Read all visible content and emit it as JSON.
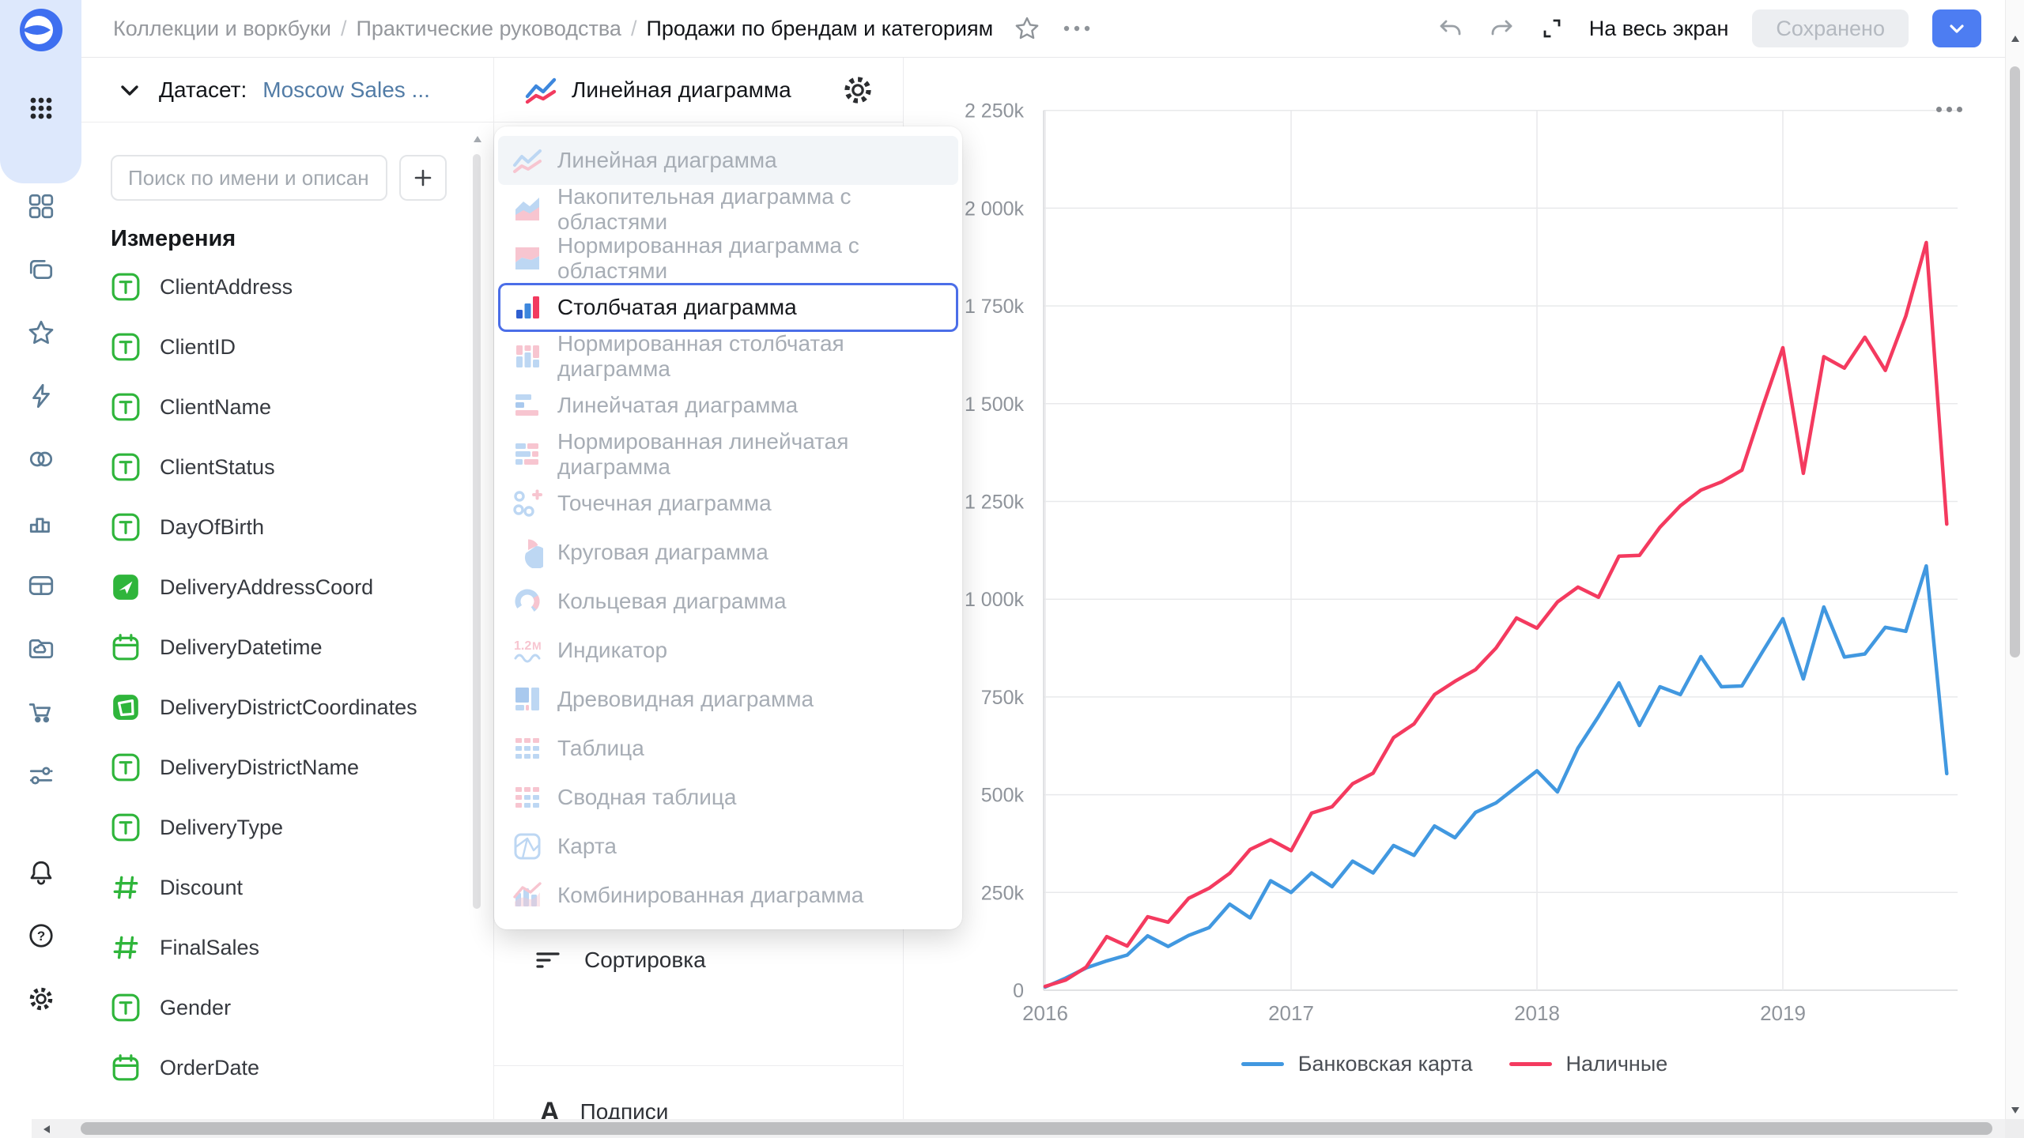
{
  "topbar": {
    "breadcrumbs": [
      "Коллекции и воркбуки",
      "Практические руководства",
      "Продажи по брендам и категориям"
    ],
    "fullscreen_label": "На весь экран",
    "save_button": "Сохранено",
    "icons": [
      "favorite-star-icon",
      "more-ellipsis-icon",
      "undo-icon",
      "redo-icon",
      "expand-fullscreen-icon",
      "save-dropdown-chevron-icon"
    ]
  },
  "sidebar": {
    "icons": [
      "datalens-logo",
      "apps-grid-icon",
      "dashboards-icon",
      "collections-icon",
      "favorites-star-icon",
      "quick-actions-bolt-icon",
      "datasets-venn-icon",
      "charts-bars-icon",
      "tables-icon",
      "storage-folder-icon",
      "marketplace-cart-icon",
      "services-sliders-icon",
      "notifications-bell-icon",
      "help-icon",
      "settings-gear-icon"
    ]
  },
  "dataset_panel": {
    "label": "Датасет:",
    "dataset_name": "Moscow Sales ...",
    "search_placeholder": "Поиск по имени и описанию",
    "add_button_label": "+",
    "section_title": "Измерения",
    "fields": [
      {
        "name": "ClientAddress",
        "type": "string"
      },
      {
        "name": "ClientID",
        "type": "string"
      },
      {
        "name": "ClientName",
        "type": "string"
      },
      {
        "name": "ClientStatus",
        "type": "string"
      },
      {
        "name": "DayOfBirth",
        "type": "string"
      },
      {
        "name": "DeliveryAddressCoord",
        "type": "geopoint"
      },
      {
        "name": "DeliveryDatetime",
        "type": "date"
      },
      {
        "name": "DeliveryDistrictCoordinates",
        "type": "geopolygon"
      },
      {
        "name": "DeliveryDistrictName",
        "type": "string"
      },
      {
        "name": "DeliveryType",
        "type": "string"
      },
      {
        "name": "Discount",
        "type": "number"
      },
      {
        "name": "FinalSales",
        "type": "number"
      },
      {
        "name": "Gender",
        "type": "string"
      },
      {
        "name": "OrderDate",
        "type": "date"
      }
    ]
  },
  "chart_selector": {
    "current": "Линейная диаграмма",
    "options": [
      {
        "label": "Линейная диаграмма",
        "icon": "line",
        "state": "hover"
      },
      {
        "label": "Накопительная диаграмма с областями",
        "icon": "area-stacked",
        "state": "default"
      },
      {
        "label": "Нормированная диаграмма с областями",
        "icon": "area-normalized",
        "state": "default"
      },
      {
        "label": "Столбчатая диаграмма",
        "icon": "column",
        "state": "selected"
      },
      {
        "label": "Нормированная столбчатая диаграмма",
        "icon": "column-normalized",
        "state": "default"
      },
      {
        "label": "Линейчатая диаграмма",
        "icon": "bar",
        "state": "default"
      },
      {
        "label": "Нормированная линейчатая диаграмма",
        "icon": "bar-normalized",
        "state": "default"
      },
      {
        "label": "Точечная диаграмма",
        "icon": "scatter",
        "state": "default"
      },
      {
        "label": "Круговая диаграмма",
        "icon": "pie",
        "state": "default"
      },
      {
        "label": "Кольцевая диаграмма",
        "icon": "donut",
        "state": "default"
      },
      {
        "label": "Индикатор",
        "icon": "indicator",
        "state": "default"
      },
      {
        "label": "Древовидная диаграмма",
        "icon": "treemap",
        "state": "default"
      },
      {
        "label": "Таблица",
        "icon": "table",
        "state": "default"
      },
      {
        "label": "Сводная таблица",
        "icon": "pivot",
        "state": "default"
      },
      {
        "label": "Карта",
        "icon": "map",
        "state": "default"
      },
      {
        "label": "Комбинированная диаграмма",
        "icon": "combined",
        "state": "default"
      }
    ]
  },
  "config_panel": {
    "sorting": "Сортировка",
    "labels": "Подписи"
  },
  "chart_data": {
    "type": "line",
    "title": "",
    "xlabel": "",
    "ylabel": "",
    "value_unit": "thousands (k)",
    "grid": true,
    "legend_position": "bottom",
    "x": [
      "2016-01",
      "2016-02",
      "2016-03",
      "2016-04",
      "2016-05",
      "2016-06",
      "2016-07",
      "2016-08",
      "2016-09",
      "2016-10",
      "2016-11",
      "2016-12",
      "2017-01",
      "2017-02",
      "2017-03",
      "2017-04",
      "2017-05",
      "2017-06",
      "2017-07",
      "2017-08",
      "2017-09",
      "2017-10",
      "2017-11",
      "2017-12",
      "2018-01",
      "2018-02",
      "2018-03",
      "2018-04",
      "2018-05",
      "2018-06",
      "2018-07",
      "2018-08",
      "2018-09",
      "2018-10",
      "2018-11",
      "2018-12",
      "2019-01",
      "2019-02",
      "2019-03",
      "2019-04",
      "2019-05",
      "2019-06",
      "2019-07",
      "2019-08",
      "2019-09"
    ],
    "series": [
      {
        "name": "Банковская карта",
        "color": "#4198e0",
        "values_k": [
          8,
          31,
          57,
          75,
          90,
          139,
          112,
          140,
          160,
          220,
          185,
          280,
          250,
          300,
          265,
          330,
          300,
          370,
          345,
          420,
          390,
          455,
          479,
          520,
          561,
          507,
          619,
          700,
          786,
          677,
          776,
          756,
          853,
          776,
          778,
          865,
          950,
          796,
          980,
          852,
          860,
          928,
          918,
          1085,
          554
        ]
      },
      {
        "name": "Наличные",
        "color": "#f43a5f",
        "values_k": [
          10,
          26,
          59,
          137,
          113,
          188,
          174,
          235,
          261,
          299,
          360,
          385,
          357,
          453,
          469,
          528,
          555,
          646,
          681,
          756,
          790,
          820,
          875,
          952,
          926,
          993,
          1031,
          1005,
          1110,
          1112,
          1184,
          1239,
          1279,
          1300,
          1330,
          1490,
          1643,
          1322,
          1620,
          1591,
          1670,
          1585,
          1724,
          1912,
          1192
        ]
      }
    ],
    "ylim_k": [
      0,
      2250
    ],
    "yticks": [
      {
        "v": 2250,
        "label": "2 250k"
      },
      {
        "v": 2000,
        "label": "2 000k"
      },
      {
        "v": 1750,
        "label": "1 750k"
      },
      {
        "v": 1500,
        "label": "1 500k"
      },
      {
        "v": 1250,
        "label": "1 250k"
      },
      {
        "v": 1000,
        "label": "1 000k"
      },
      {
        "v": 750,
        "label": "750k"
      },
      {
        "v": 500,
        "label": "500k"
      },
      {
        "v": 250,
        "label": "250k"
      },
      {
        "v": 0,
        "label": "0"
      }
    ],
    "xticks": [
      {
        "label": "2016",
        "month_index": 0
      },
      {
        "label": "2017",
        "month_index": 12
      },
      {
        "label": "2018",
        "month_index": 24
      },
      {
        "label": "2019",
        "month_index": 36
      }
    ],
    "legend": [
      "Банковская карта",
      "Наличные"
    ]
  }
}
